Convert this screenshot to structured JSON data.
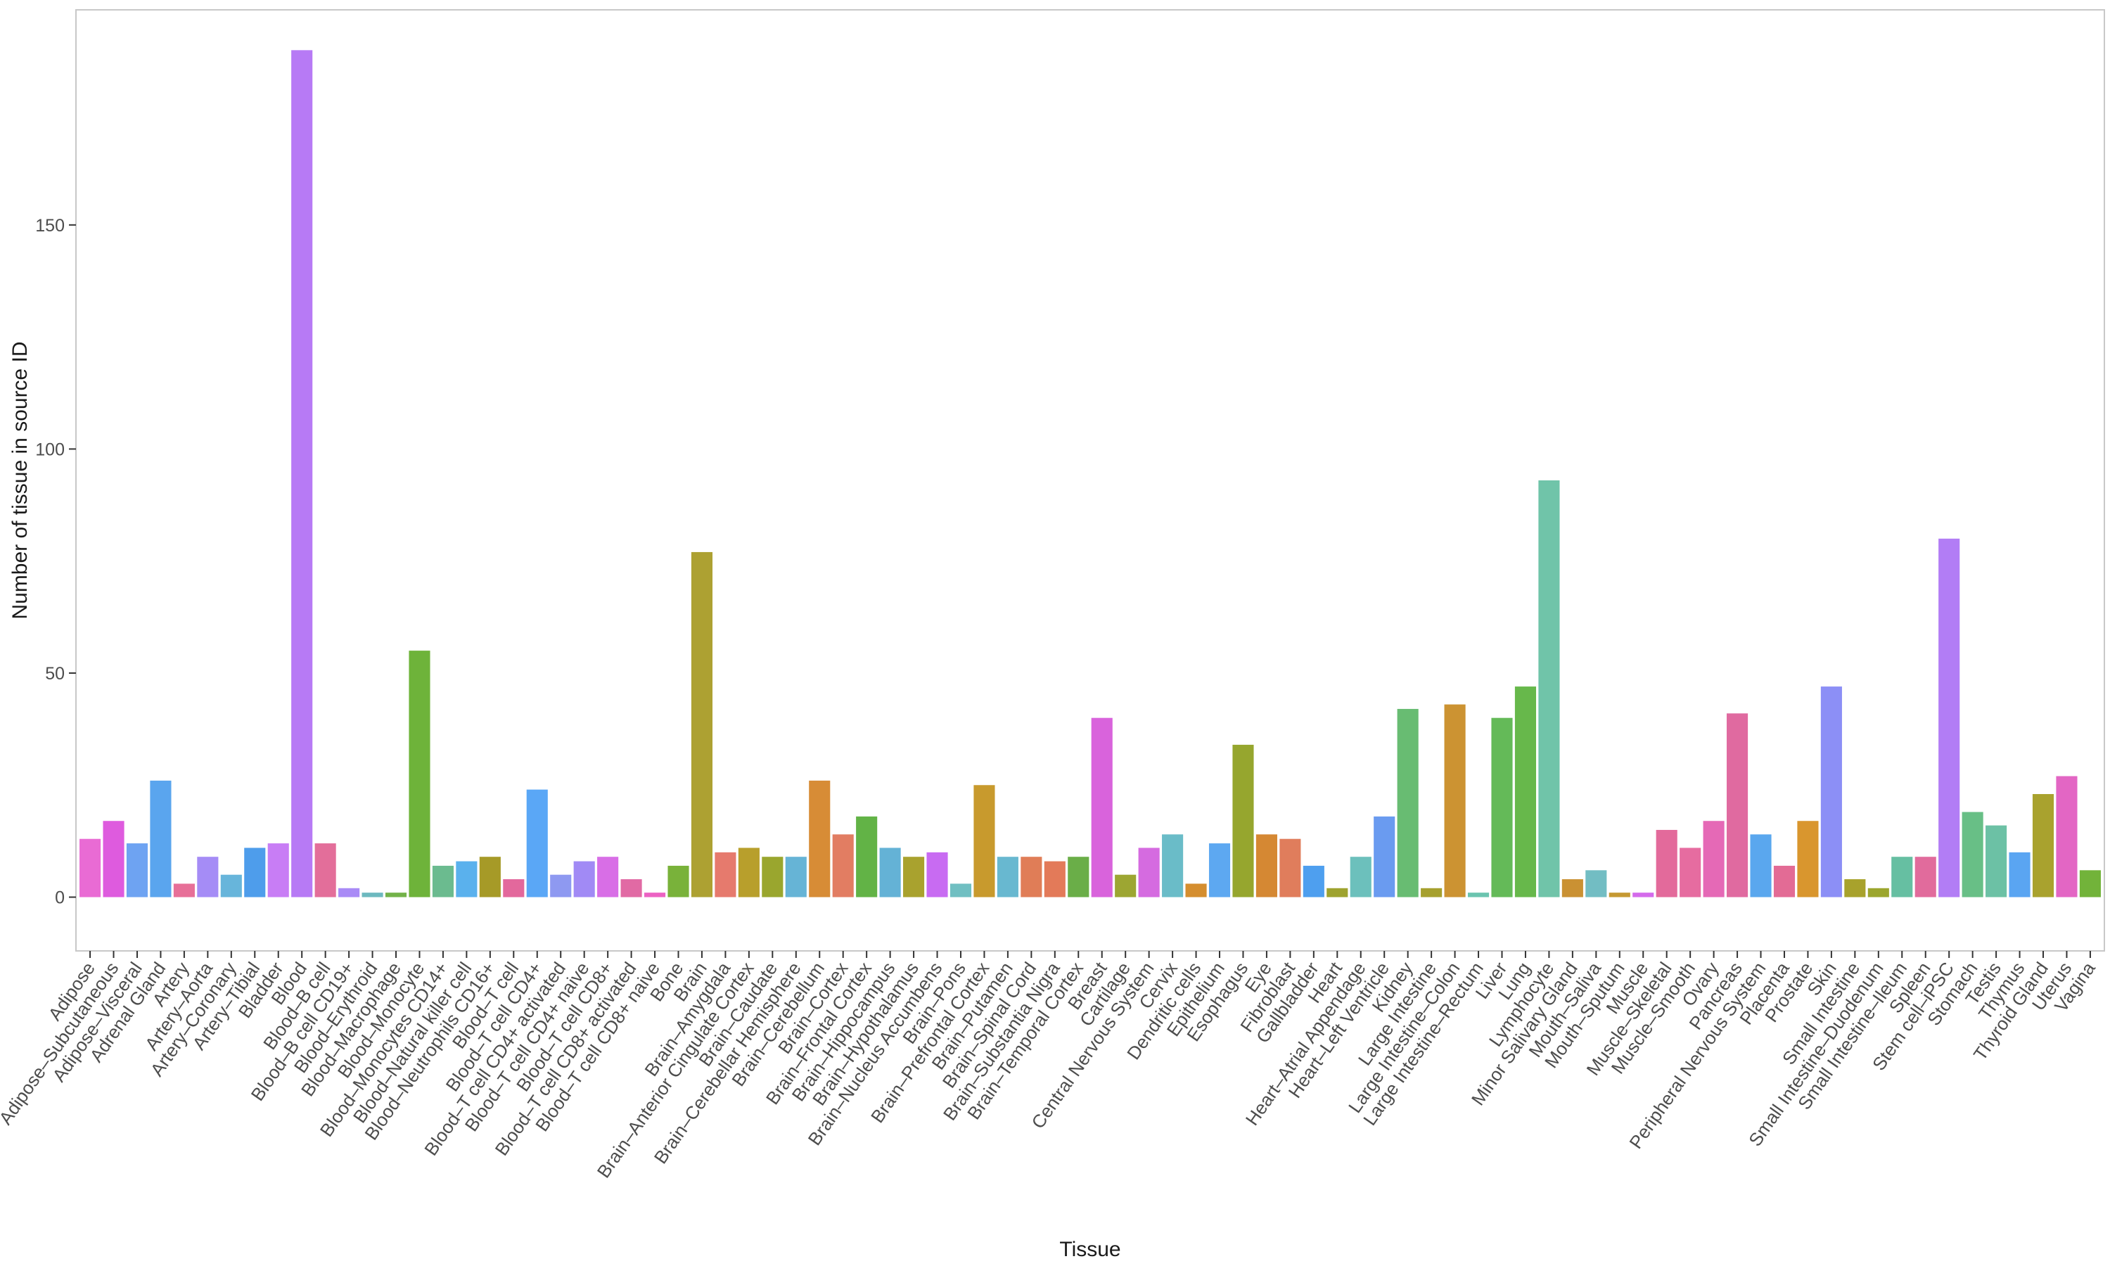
{
  "chart_data": {
    "type": "bar",
    "xlabel": "Tissue",
    "ylabel": "Number of tissue in source ID",
    "ylim": [
      -12,
      198
    ],
    "yticks": [
      0,
      50,
      100,
      150
    ],
    "grid": false,
    "legend": "none",
    "categories": [
      "Adipose",
      "Adipose–Subcutaneous",
      "Adipose–Visceral",
      "Adrenal Gland",
      "Artery",
      "Artery–Aorta",
      "Artery–Coronary",
      "Artery–Tibial",
      "Bladder",
      "Blood",
      "Blood–B cell",
      "Blood–B cell CD19+",
      "Blood–Erythroid",
      "Blood–Macrophage",
      "Blood–Monocyte",
      "Blood–Monocytes CD14+",
      "Blood–Natural killer cell",
      "Blood–Neutrophils CD16+",
      "Blood–T cell",
      "Blood–T cell CD4+",
      "Blood–T cell CD4+ activated",
      "Blood–T cell CD4+ naive",
      "Blood–T cell CD8+",
      "Blood–T cell CD8+ activated",
      "Blood–T cell CD8+ naive",
      "Bone",
      "Brain",
      "Brain–Amygdala",
      "Brain–Anterior Cingulate Cortex",
      "Brain–Caudate",
      "Brain–Cerebellar Hemisphere",
      "Brain–Cerebellum",
      "Brain–Cortex",
      "Brain–Frontal Cortex",
      "Brain–Hippocampus",
      "Brain–Hypothalamus",
      "Brain–Nucleus Accumbens",
      "Brain–Pons",
      "Brain–Prefrontal Cortex",
      "Brain–Putamen",
      "Brain–Spinal Cord",
      "Brain–Substantia Nigra",
      "Brain–Temporal Cortex",
      "Breast",
      "Cartilage",
      "Central Nervous System",
      "Cervix",
      "Dendritic cells",
      "Epithelium",
      "Esophagus",
      "Eye",
      "Fibroblast",
      "Gallbladder",
      "Heart",
      "Heart–Atrial Appendage",
      "Heart–Left Ventricle",
      "Kidney",
      "Large Intestine",
      "Large Intestine–Colon",
      "Large Intestine–Rectum",
      "Liver",
      "Lung",
      "Lymphocyte",
      "Minor Salivary Gland",
      "Mouth–Saliva",
      "Mouth–Sputum",
      "Muscle",
      "Muscle–Skeletal",
      "Muscle–Smooth",
      "Ovary",
      "Pancreas",
      "Peripheral Nervous System",
      "Placenta",
      "Prostate",
      "Skin",
      "Small Intestine",
      "Small Intestine–Duodenum",
      "Small Intestine–Ileum",
      "Spleen",
      "Stem cell–iPSC",
      "Stomach",
      "Testis",
      "Thymus",
      "Thyroid Gland",
      "Uterus",
      "Vagina"
    ],
    "values": [
      13,
      17,
      12,
      26,
      3,
      9,
      5,
      11,
      12,
      189,
      12,
      2,
      1,
      1,
      55,
      7,
      8,
      9,
      4,
      24,
      5,
      8,
      9,
      4,
      1,
      7,
      77,
      10,
      11,
      9,
      9,
      26,
      14,
      18,
      11,
      9,
      10,
      3,
      25,
      9,
      9,
      8,
      9,
      40,
      5,
      11,
      14,
      3,
      12,
      34,
      14,
      13,
      7,
      2,
      9,
      18,
      42,
      2,
      43,
      1,
      40,
      47,
      93,
      4,
      6,
      1,
      1,
      15,
      11,
      17,
      41,
      14,
      7,
      17,
      47,
      4,
      2,
      9,
      9,
      80,
      19,
      16,
      10,
      23,
      27,
      6
    ],
    "colors": [
      "#E96BD4",
      "#DE5BDE",
      "#6EA3F2",
      "#5AA5EE",
      "#E76F98",
      "#A58CF6",
      "#67B5DB",
      "#4E9DEB",
      "#C87DF5",
      "#B77AF5",
      "#E36E9A",
      "#A98BF6",
      "#6DB9BF",
      "#73B249",
      "#6EB33A",
      "#6BBB8F",
      "#5AB1ED",
      "#A69A27",
      "#E3689C",
      "#5AA7F6",
      "#8E99F1",
      "#A18AF5",
      "#D86EE6",
      "#E16AA4",
      "#EC62C3",
      "#79B23A",
      "#ADA132",
      "#E67A6D",
      "#B89F2C",
      "#9AA62E",
      "#66B4D6",
      "#D78C36",
      "#E27D62",
      "#62B346",
      "#64B2D6",
      "#A9A22E",
      "#C86BF2",
      "#70BFC2",
      "#C89A2D",
      "#68B8D0",
      "#E07D57",
      "#E37A59",
      "#6AAE48",
      "#D963DC",
      "#9DA632",
      "#D56BE0",
      "#6ABCC8",
      "#D58E2F",
      "#5DA8F1",
      "#96A62E",
      "#D58833",
      "#E07D5C",
      "#4E9FEF",
      "#9EA32F",
      "#6CC0BC",
      "#6A9BF0",
      "#68BC72",
      "#A6A02E",
      "#CC9332",
      "#6BC4AF",
      "#64BA58",
      "#67B84B",
      "#70C4A9",
      "#CA9133",
      "#72BDC3",
      "#C59932",
      "#D46BEB",
      "#E36A9B",
      "#E66CA0",
      "#E569B6",
      "#E06AA0",
      "#5AA7EE",
      "#E36B95",
      "#D9962E",
      "#8C8FF6",
      "#A8A22C",
      "#9CA62E",
      "#66BFA2",
      "#E16B9C",
      "#B27DF5",
      "#68BF86",
      "#6CC1A5",
      "#5AA5F2",
      "#A9A22E",
      "#E366C4",
      "#72B33A"
    ]
  }
}
